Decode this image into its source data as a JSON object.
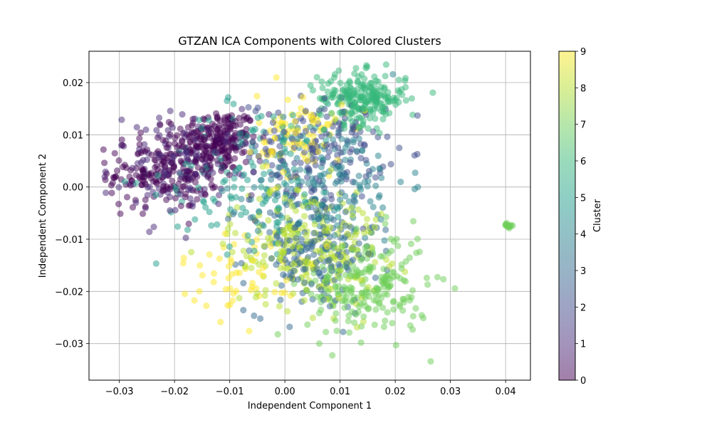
{
  "chart_data": {
    "type": "scatter",
    "title": "GTZAN ICA Components with Colored Clusters",
    "xlabel": "Independent Component 1",
    "ylabel": "Independent Component 2",
    "xlim": [
      -0.0355,
      0.0445
    ],
    "ylim": [
      -0.037,
      0.026
    ],
    "grid": true,
    "x_ticks": [
      -0.03,
      -0.02,
      -0.01,
      0.0,
      0.01,
      0.02,
      0.03,
      0.04
    ],
    "x_tick_labels": [
      "−0.03",
      "−0.02",
      "−0.01",
      "0.00",
      "0.01",
      "0.02",
      "0.03",
      "0.04"
    ],
    "y_ticks": [
      -0.03,
      -0.02,
      -0.01,
      0.0,
      0.01,
      0.02
    ],
    "y_tick_labels": [
      "−0.03",
      "−0.02",
      "−0.01",
      "0.00",
      "0.01",
      "0.02"
    ],
    "marker_alpha": 0.5,
    "colorbar": {
      "label": "Cluster",
      "min": 0,
      "max": 9,
      "ticks": [
        0,
        1,
        2,
        3,
        4,
        5,
        6,
        7,
        8,
        9
      ],
      "tick_labels": [
        "0",
        "1",
        "2",
        "3",
        "4",
        "5",
        "6",
        "7",
        "8",
        "9"
      ],
      "colormap": "viridis",
      "colormap_stops": [
        "#440154",
        "#482878",
        "#3e4989",
        "#31688e",
        "#26828e",
        "#1f9e89",
        "#35b779",
        "#6ece58",
        "#b5de2b",
        "#fde725"
      ]
    },
    "clusters": [
      {
        "cluster": 0,
        "center": [
          -0.012,
          0.009
        ],
        "spread": [
          0.0035,
          0.003
        ],
        "count": 200
      },
      {
        "cluster": 0,
        "center": [
          -0.022,
          0.003
        ],
        "spread": [
          0.005,
          0.0035
        ],
        "count": 200
      },
      {
        "cluster": 1,
        "center": [
          -0.018,
          0.004
        ],
        "spread": [
          0.007,
          0.005
        ],
        "count": 130
      },
      {
        "cluster": 2,
        "center": [
          0.006,
          0.007
        ],
        "spread": [
          0.006,
          0.005
        ],
        "count": 160
      },
      {
        "cluster": 3,
        "center": [
          0.005,
          -0.012
        ],
        "spread": [
          0.006,
          0.006
        ],
        "count": 200
      },
      {
        "cluster": 4,
        "center": [
          0.008,
          0.001
        ],
        "spread": [
          0.007,
          0.006
        ],
        "count": 150
      },
      {
        "cluster": 5,
        "center": [
          -0.005,
          0.002
        ],
        "spread": [
          0.009,
          0.007
        ],
        "count": 150
      },
      {
        "cluster": 6,
        "center": [
          0.014,
          0.017
        ],
        "spread": [
          0.004,
          0.0025
        ],
        "count": 230
      },
      {
        "cluster": 7,
        "center": [
          0.015,
          -0.019
        ],
        "spread": [
          0.0055,
          0.005
        ],
        "count": 220
      },
      {
        "cluster": 7,
        "center": [
          0.0405,
          -0.0074
        ],
        "spread": [
          0.0003,
          0.0002
        ],
        "count": 14
      },
      {
        "cluster": 8,
        "center": [
          0.004,
          -0.011
        ],
        "spread": [
          0.007,
          0.006
        ],
        "count": 230
      },
      {
        "cluster": 9,
        "center": [
          0.003,
          0.01
        ],
        "spread": [
          0.004,
          0.004
        ],
        "count": 90
      },
      {
        "cluster": 9,
        "center": [
          -0.007,
          -0.016
        ],
        "spread": [
          0.006,
          0.004
        ],
        "count": 60
      }
    ]
  }
}
